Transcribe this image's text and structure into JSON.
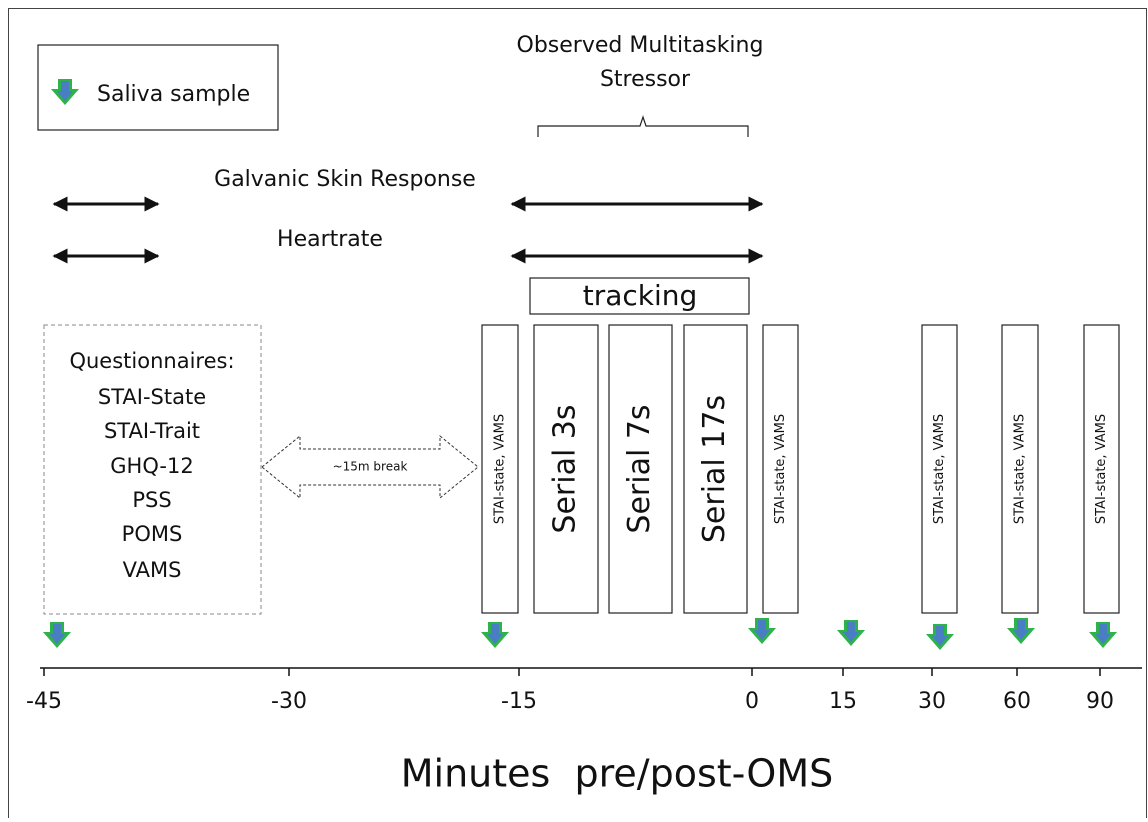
{
  "legend": {
    "label": "Saliva sample"
  },
  "stressor": {
    "lines": [
      "Observed Multitasking",
      "Stressor"
    ]
  },
  "measures": [
    "Galvanic Skin Response",
    "Heartrate"
  ],
  "tracking": "tracking",
  "questionnaires": {
    "title": "Questionnaires:",
    "items": [
      "STAI-State",
      "STAI-Trait",
      "GHQ-12",
      "PSS",
      "POMS",
      "VAMS"
    ]
  },
  "break": "~15m break",
  "blocks": [
    "STAI-state, VAMS",
    "Serial 3s",
    "Serial 7s",
    "Serial 17s",
    "STAI-state, VAMS",
    "STAI-state, VAMS",
    "STAI-state, VAMS",
    "STAI-state, VAMS"
  ],
  "axis": {
    "ticks": [
      -45,
      -30,
      -15,
      0,
      15,
      30,
      60,
      90
    ],
    "label": "Minutes  pre/post-OMS"
  }
}
